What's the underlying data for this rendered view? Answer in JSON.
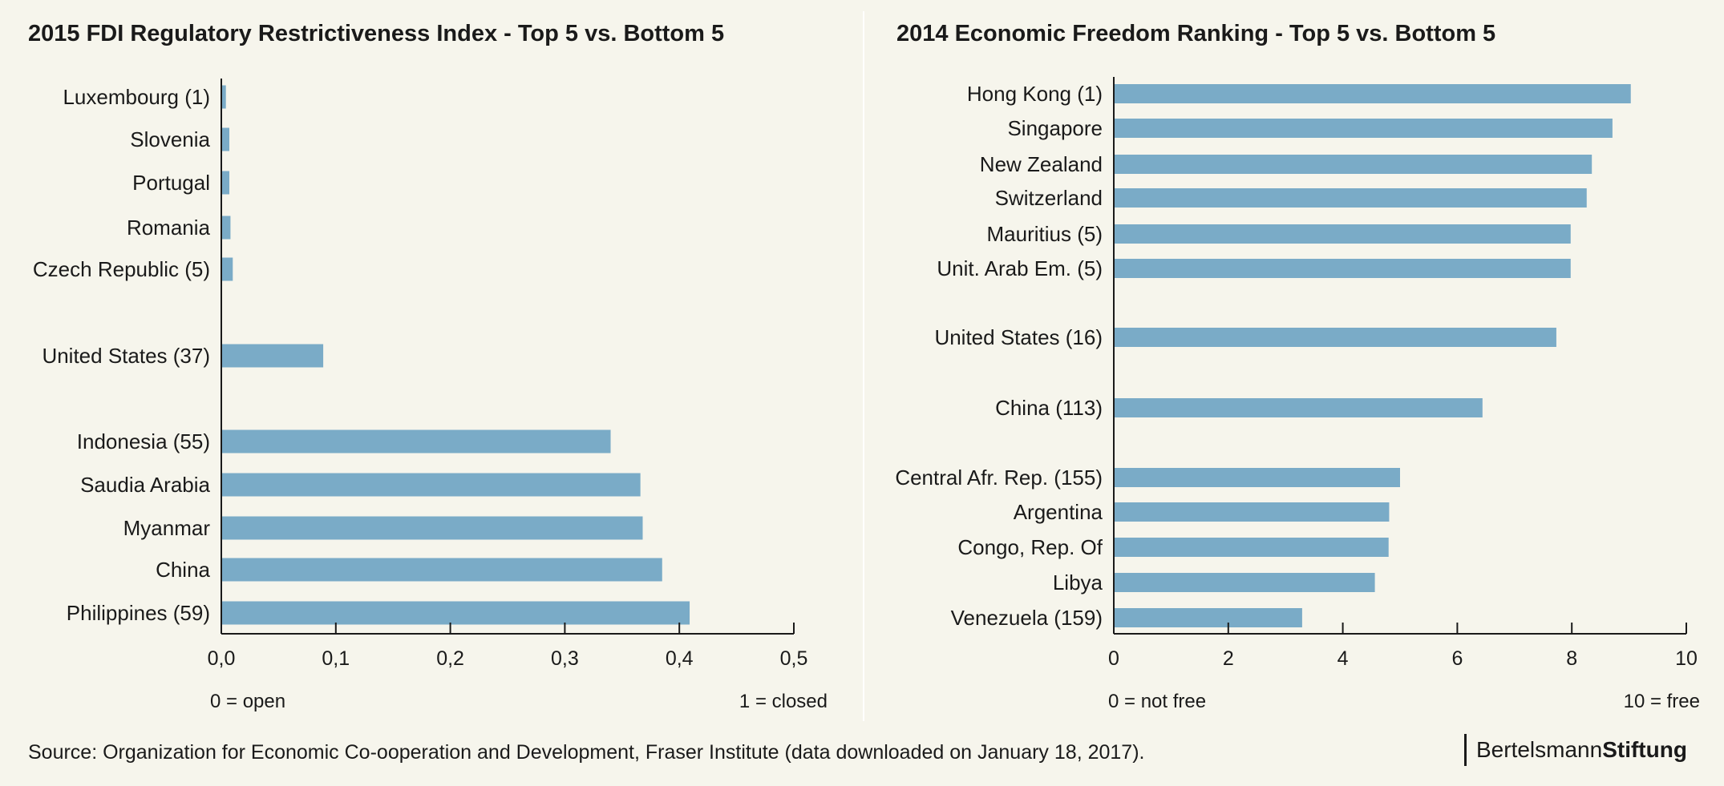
{
  "chart_data": [
    {
      "type": "bar",
      "orientation": "horizontal",
      "title": "2015 FDI Regulatory Restrictiveness Index - Top 5 vs. Bottom 5",
      "categories": [
        "Luxembourg (1)",
        "Slovenia",
        "Portugal",
        "Romania",
        "Czech Republic (5)",
        "United States (37)",
        "Indonesia (55)",
        "Saudia Arabia",
        "Myanmar",
        "China",
        "Philippines (59)"
      ],
      "values": [
        0.004,
        0.007,
        0.007,
        0.008,
        0.01,
        0.089,
        0.34,
        0.366,
        0.368,
        0.385,
        0.409
      ],
      "xlim": [
        0,
        0.5
      ],
      "xticks": [
        "0,0",
        "0,1",
        "0,2",
        "0,3",
        "0,4",
        "0,5"
      ],
      "xticks_values": [
        0,
        0.1,
        0.2,
        0.3,
        0.4,
        0.5
      ],
      "note_left": "0 = open",
      "note_right": "1 = closed",
      "bar_color": "#7aabc7",
      "grid": false
    },
    {
      "type": "bar",
      "orientation": "horizontal",
      "title": "2014 Economic Freedom Ranking - Top 5 vs. Bottom 5",
      "categories": [
        "Hong Kong (1)",
        "Singapore",
        "New Zealand",
        "Switzerland",
        "Mauritius (5)",
        "Unit. Arab Em. (5)",
        "United States (16)",
        "China (113)",
        "Central Afr. Rep. (155)",
        "Argentina",
        "Congo, Rep. Of",
        "Libya",
        "Venezuela (159)"
      ],
      "values": [
        9.03,
        8.71,
        8.35,
        8.26,
        7.98,
        7.98,
        7.73,
        6.44,
        5.0,
        4.81,
        4.8,
        4.56,
        3.29
      ],
      "xlim": [
        0,
        10
      ],
      "xticks": [
        "0",
        "2",
        "4",
        "6",
        "8",
        "10"
      ],
      "xticks_values": [
        0,
        2,
        4,
        6,
        8,
        10
      ],
      "note_left": "0 = not free",
      "note_right": "10 = free",
      "bar_color": "#7aabc7",
      "grid": false
    }
  ],
  "footer": {
    "source": "Source: Organization for Economic Co-ooperation and Development, Fraser Institute (data downloaded on January 18, 2017).",
    "brand_regular": "Bertelsmann",
    "brand_bold": "Stiftung"
  }
}
